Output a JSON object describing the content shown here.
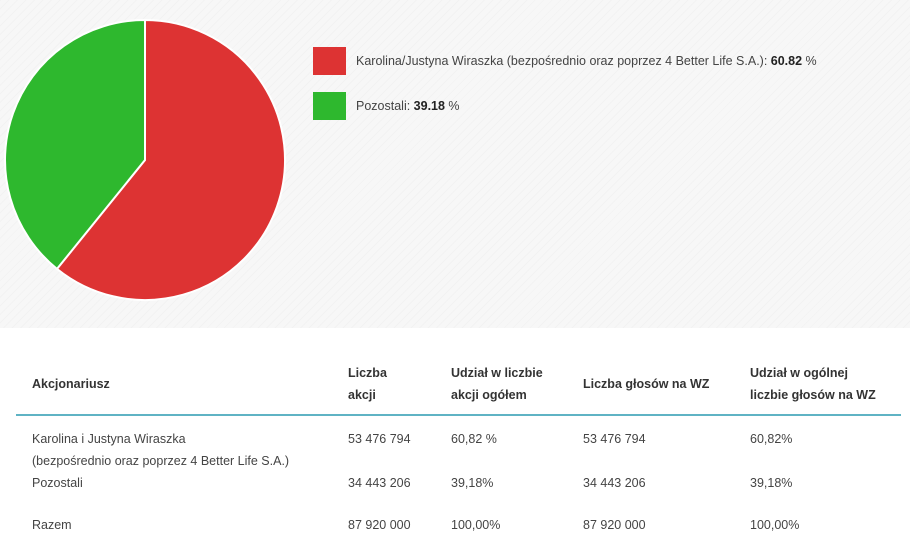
{
  "chart_data": {
    "type": "pie",
    "slices": [
      {
        "name_prefix": "Karolina/Justyna Wiraszka (bezpośrednio oraz poprzez 4 Better Life S.A.): ",
        "value": 60.82,
        "value_text": "60.82",
        "unit": " %",
        "color": "#dd3333"
      },
      {
        "name_prefix": "Pozostali: ",
        "value": 39.18,
        "value_text": "39.18",
        "unit": " %",
        "color": "#2eb82e"
      }
    ],
    "start_angle_deg": 0,
    "direction": "clockwise",
    "slice_border_color": "#ffffff"
  },
  "table": {
    "headers": [
      [
        "Akcjonariusz"
      ],
      [
        "Liczba",
        "akcji"
      ],
      [
        "Udział w liczbie",
        "akcji ogółem"
      ],
      [
        "Liczba głosów na WZ"
      ],
      [
        "Udział w ogólnej",
        "liczbie głosów na WZ"
      ]
    ],
    "rows": [
      [
        [
          "Karolina i Justyna Wiraszka",
          "(bezpośrednio oraz poprzez 4 Better Life S.A.)"
        ],
        [
          "53 476 794"
        ],
        [
          "60,82 %"
        ],
        [
          "53 476 794"
        ],
        [
          "60,82%"
        ]
      ],
      [
        [
          "Pozostali"
        ],
        [
          "34 443 206"
        ],
        [
          "39,18%"
        ],
        [
          "34 443 206"
        ],
        [
          "39,18%"
        ]
      ],
      [
        [
          "Razem"
        ],
        [
          "87 920 000"
        ],
        [
          "100,00%"
        ],
        [
          "87 920 000"
        ],
        [
          "100,00%"
        ]
      ]
    ],
    "accent_color": "#5fb3c4"
  }
}
